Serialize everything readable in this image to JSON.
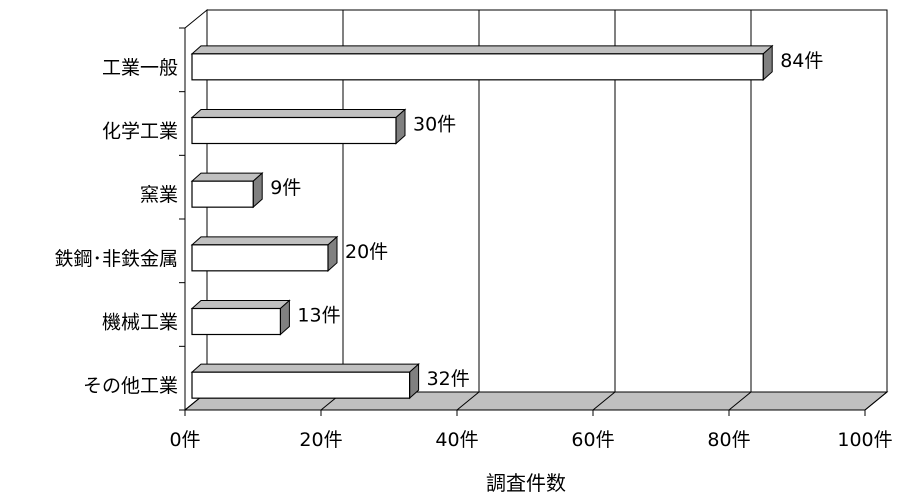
{
  "chart_data": {
    "type": "bar",
    "orientation": "horizontal",
    "style": "3d",
    "categories": [
      "工業一般",
      "化学工業",
      "窯業",
      "鉄鋼･非鉄金属",
      "機械工業",
      "その他工業"
    ],
    "values": [
      84,
      30,
      9,
      20,
      13,
      32
    ],
    "data_labels": [
      "84件",
      "30件",
      "9件",
      "20件",
      "13件",
      "32件"
    ],
    "xlabel": "調査件数",
    "ylabel": "",
    "xlim": [
      0,
      100
    ],
    "x_ticks": [
      0,
      20,
      40,
      60,
      80,
      100
    ],
    "x_tick_labels": [
      "0件",
      "20件",
      "40件",
      "60件",
      "80件",
      "100件"
    ],
    "grid": "vertical",
    "legend": "none",
    "colors": {
      "bar_face": "#ffffff",
      "bar_top": "#c0c0c0",
      "bar_side": "#808080",
      "grid": "#000000",
      "floor": "#c0c0c0"
    }
  }
}
